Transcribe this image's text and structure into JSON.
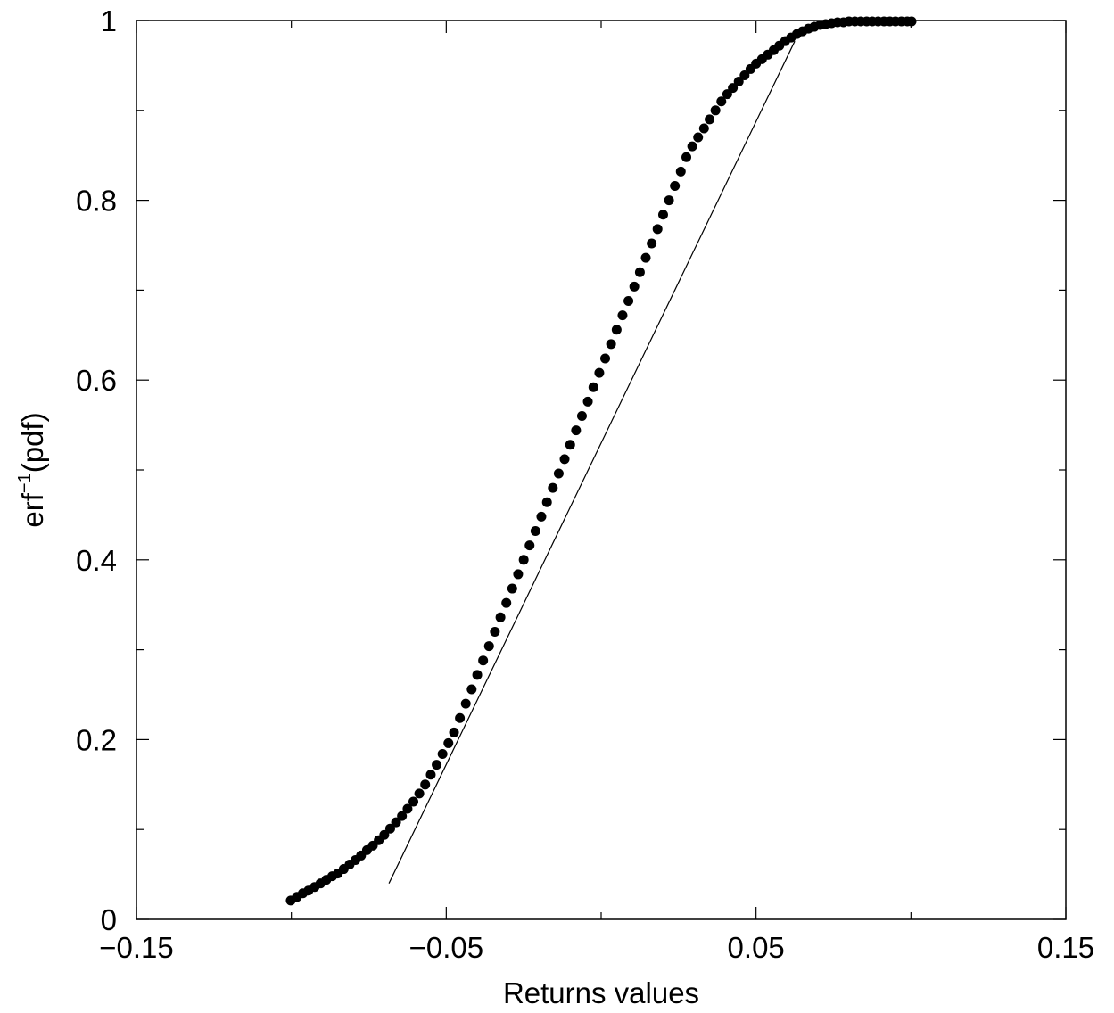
{
  "chart_data": {
    "type": "scatter",
    "title": "",
    "xlabel": "Returns values",
    "ylabel_main": "erf",
    "ylabel_sup": "−1",
    "ylabel_tail": "(pdf)",
    "xlim": [
      -0.15,
      0.15
    ],
    "ylim": [
      0,
      1
    ],
    "x_ticks": [
      {
        "value": -0.15,
        "label": "−0.15"
      },
      {
        "value": -0.05,
        "label": "−0.05"
      },
      {
        "value": 0.05,
        "label": "0.05"
      },
      {
        "value": 0.15,
        "label": "0.15"
      }
    ],
    "y_ticks": [
      {
        "value": 0,
        "label": "0"
      },
      {
        "value": 0.2,
        "label": "0.2"
      },
      {
        "value": 0.4,
        "label": "0.4"
      },
      {
        "value": 0.6,
        "label": "0.6"
      },
      {
        "value": 0.8,
        "label": "0.8"
      },
      {
        "value": 1,
        "label": "1"
      }
    ],
    "x_minor_ticks": [
      -0.1,
      0,
      0.1
    ],
    "y_minor_ticks": [
      0.1,
      0.3,
      0.5,
      0.7,
      0.9
    ],
    "grid": false,
    "legend": "none",
    "fit_line": {
      "x": [
        -0.0685,
        0.0625
      ],
      "y": [
        0.04,
        0.977
      ]
    },
    "series": [
      {
        "marker": "filled-circle",
        "color": "#000000",
        "points": [
          [
            -0.1002,
            0.021
          ],
          [
            -0.0982,
            0.025
          ],
          [
            -0.0963,
            0.029
          ],
          [
            -0.0945,
            0.032
          ],
          [
            -0.0925,
            0.036
          ],
          [
            -0.0906,
            0.04
          ],
          [
            -0.0887,
            0.044
          ],
          [
            -0.0868,
            0.048
          ],
          [
            -0.085,
            0.051
          ],
          [
            -0.0831,
            0.056
          ],
          [
            -0.0812,
            0.061
          ],
          [
            -0.0793,
            0.066
          ],
          [
            -0.0775,
            0.071
          ],
          [
            -0.0756,
            0.077
          ],
          [
            -0.0737,
            0.082
          ],
          [
            -0.0718,
            0.088
          ],
          [
            -0.07,
            0.094
          ],
          [
            -0.0681,
            0.101
          ],
          [
            -0.0662,
            0.108
          ],
          [
            -0.0643,
            0.115
          ],
          [
            -0.0625,
            0.123
          ],
          [
            -0.0606,
            0.131
          ],
          [
            -0.0587,
            0.14
          ],
          [
            -0.0568,
            0.15
          ],
          [
            -0.055,
            0.161
          ],
          [
            -0.0531,
            0.172
          ],
          [
            -0.0512,
            0.184
          ],
          [
            -0.0493,
            0.196
          ],
          [
            -0.0475,
            0.208
          ],
          [
            -0.0456,
            0.224
          ],
          [
            -0.0437,
            0.24
          ],
          [
            -0.0418,
            0.256
          ],
          [
            -0.04,
            0.272
          ],
          [
            -0.0381,
            0.288
          ],
          [
            -0.0362,
            0.304
          ],
          [
            -0.0343,
            0.32
          ],
          [
            -0.0325,
            0.336
          ],
          [
            -0.0306,
            0.352
          ],
          [
            -0.0287,
            0.368
          ],
          [
            -0.0268,
            0.384
          ],
          [
            -0.025,
            0.4
          ],
          [
            -0.0231,
            0.416
          ],
          [
            -0.0212,
            0.432
          ],
          [
            -0.0193,
            0.448
          ],
          [
            -0.0175,
            0.464
          ],
          [
            -0.0156,
            0.48
          ],
          [
            -0.0137,
            0.496
          ],
          [
            -0.0118,
            0.512
          ],
          [
            -0.01,
            0.528
          ],
          [
            -0.0081,
            0.544
          ],
          [
            -0.0062,
            0.56
          ],
          [
            -0.0043,
            0.576
          ],
          [
            -0.0025,
            0.592
          ],
          [
            -0.0006,
            0.608
          ],
          [
            0.0013,
            0.624
          ],
          [
            0.0032,
            0.64
          ],
          [
            0.005,
            0.656
          ],
          [
            0.0069,
            0.672
          ],
          [
            0.0088,
            0.688
          ],
          [
            0.0107,
            0.704
          ],
          [
            0.0125,
            0.72
          ],
          [
            0.0144,
            0.736
          ],
          [
            0.0163,
            0.752
          ],
          [
            0.0182,
            0.768
          ],
          [
            0.02,
            0.784
          ],
          [
            0.0219,
            0.8
          ],
          [
            0.0238,
            0.816
          ],
          [
            0.0257,
            0.832
          ],
          [
            0.0275,
            0.848
          ],
          [
            0.0294,
            0.86
          ],
          [
            0.0313,
            0.87
          ],
          [
            0.0332,
            0.88
          ],
          [
            0.035,
            0.89
          ],
          [
            0.0369,
            0.9
          ],
          [
            0.0388,
            0.91
          ],
          [
            0.0407,
            0.918
          ],
          [
            0.0425,
            0.925
          ],
          [
            0.0444,
            0.932
          ],
          [
            0.0463,
            0.939
          ],
          [
            0.0482,
            0.946
          ],
          [
            0.05,
            0.952
          ],
          [
            0.0519,
            0.957
          ],
          [
            0.0538,
            0.962
          ],
          [
            0.0557,
            0.967
          ],
          [
            0.0575,
            0.972
          ],
          [
            0.0594,
            0.977
          ],
          [
            0.0613,
            0.981
          ],
          [
            0.0632,
            0.985
          ],
          [
            0.065,
            0.988
          ],
          [
            0.0669,
            0.991
          ],
          [
            0.0688,
            0.993
          ],
          [
            0.0707,
            0.995
          ],
          [
            0.0725,
            0.996
          ],
          [
            0.0744,
            0.997
          ],
          [
            0.0763,
            0.998
          ],
          [
            0.0782,
            0.998
          ],
          [
            0.08,
            0.999
          ],
          [
            0.0819,
            0.999
          ],
          [
            0.0838,
            0.999
          ],
          [
            0.0857,
            0.999
          ],
          [
            0.0875,
            0.999
          ],
          [
            0.0894,
            0.999
          ],
          [
            0.0913,
            0.999
          ],
          [
            0.0932,
            0.999
          ],
          [
            0.095,
            0.999
          ],
          [
            0.0969,
            0.999
          ],
          [
            0.0988,
            0.999
          ],
          [
            0.1002,
            0.999
          ]
        ]
      }
    ]
  }
}
